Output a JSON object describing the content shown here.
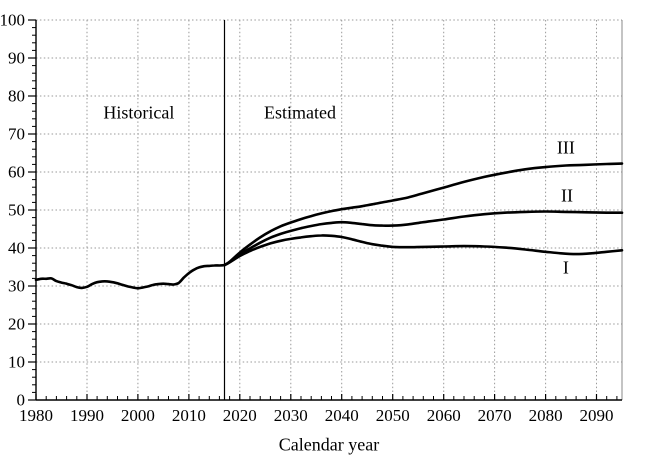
{
  "chart_data": {
    "type": "line",
    "title": "",
    "xlabel": "Calendar year",
    "ylabel": "",
    "xlim": [
      1980,
      2095
    ],
    "ylim": [
      0,
      100
    ],
    "x_ticks": [
      1980,
      1990,
      2000,
      2010,
      2020,
      2030,
      2040,
      2050,
      2060,
      2070,
      2080,
      2090
    ],
    "y_ticks": [
      0,
      10,
      20,
      30,
      40,
      50,
      60,
      70,
      80,
      90,
      100
    ],
    "x_minor_step": 2,
    "y_minor_step": 2,
    "grid": "dotted",
    "grid_color": "#9a9a9a",
    "axis_color": "#000000",
    "line_color": "#000000",
    "border_right_color": "#888888",
    "divider_year": 2017,
    "annotations": [
      {
        "text": "Historical",
        "year": 2000.2,
        "value": 75.5
      },
      {
        "text": "Estimated",
        "year": 2031.8,
        "value": 75.5
      },
      {
        "text": "III",
        "year": 2084.0,
        "value": 66.3
      },
      {
        "text": "II",
        "year": 2084.2,
        "value": 53.8
      },
      {
        "text": "I",
        "year": 2084.0,
        "value": 34.8
      }
    ],
    "series": [
      {
        "name": "Historical",
        "points": [
          [
            1980,
            31.6
          ],
          [
            1981,
            31.9
          ],
          [
            1982,
            31.9
          ],
          [
            1983,
            32.0
          ],
          [
            1984,
            31.3
          ],
          [
            1985,
            30.9
          ],
          [
            1986,
            30.6
          ],
          [
            1987,
            30.2
          ],
          [
            1988,
            29.7
          ],
          [
            1989,
            29.5
          ],
          [
            1990,
            29.8
          ],
          [
            1991,
            30.5
          ],
          [
            1992,
            31.0
          ],
          [
            1993,
            31.2
          ],
          [
            1994,
            31.2
          ],
          [
            1995,
            31.0
          ],
          [
            1996,
            30.7
          ],
          [
            1997,
            30.3
          ],
          [
            1998,
            29.9
          ],
          [
            1999,
            29.6
          ],
          [
            2000,
            29.4
          ],
          [
            2001,
            29.6
          ],
          [
            2002,
            29.9
          ],
          [
            2003,
            30.3
          ],
          [
            2004,
            30.5
          ],
          [
            2005,
            30.6
          ],
          [
            2006,
            30.5
          ],
          [
            2007,
            30.4
          ],
          [
            2008,
            30.8
          ],
          [
            2009,
            32.2
          ],
          [
            2010,
            33.4
          ],
          [
            2011,
            34.3
          ],
          [
            2012,
            34.9
          ],
          [
            2013,
            35.2
          ],
          [
            2014,
            35.3
          ],
          [
            2015,
            35.4
          ],
          [
            2016,
            35.4
          ],
          [
            2017,
            35.5
          ]
        ]
      },
      {
        "name": "I",
        "points": [
          [
            2017,
            35.5
          ],
          [
            2018,
            36.2
          ],
          [
            2020,
            37.9
          ],
          [
            2022,
            39.2
          ],
          [
            2024,
            40.3
          ],
          [
            2026,
            41.2
          ],
          [
            2028,
            41.9
          ],
          [
            2030,
            42.4
          ],
          [
            2032,
            42.8
          ],
          [
            2034,
            43.1
          ],
          [
            2036,
            43.3
          ],
          [
            2038,
            43.2
          ],
          [
            2040,
            42.9
          ],
          [
            2042,
            42.3
          ],
          [
            2044,
            41.6
          ],
          [
            2046,
            41.0
          ],
          [
            2048,
            40.6
          ],
          [
            2050,
            40.3
          ],
          [
            2053,
            40.2
          ],
          [
            2056,
            40.3
          ],
          [
            2060,
            40.4
          ],
          [
            2064,
            40.5
          ],
          [
            2068,
            40.4
          ],
          [
            2072,
            40.1
          ],
          [
            2076,
            39.6
          ],
          [
            2080,
            39.0
          ],
          [
            2083,
            38.6
          ],
          [
            2086,
            38.4
          ],
          [
            2089,
            38.6
          ],
          [
            2092,
            39.0
          ],
          [
            2095,
            39.4
          ]
        ]
      },
      {
        "name": "II",
        "points": [
          [
            2017,
            35.5
          ],
          [
            2018,
            36.3
          ],
          [
            2020,
            38.3
          ],
          [
            2022,
            39.9
          ],
          [
            2024,
            41.4
          ],
          [
            2026,
            42.7
          ],
          [
            2028,
            43.7
          ],
          [
            2030,
            44.5
          ],
          [
            2032,
            45.2
          ],
          [
            2034,
            45.8
          ],
          [
            2036,
            46.3
          ],
          [
            2038,
            46.6
          ],
          [
            2040,
            46.8
          ],
          [
            2042,
            46.6
          ],
          [
            2044,
            46.3
          ],
          [
            2046,
            46.0
          ],
          [
            2048,
            45.9
          ],
          [
            2050,
            45.9
          ],
          [
            2053,
            46.2
          ],
          [
            2056,
            46.8
          ],
          [
            2060,
            47.5
          ],
          [
            2064,
            48.3
          ],
          [
            2068,
            48.9
          ],
          [
            2072,
            49.3
          ],
          [
            2076,
            49.5
          ],
          [
            2080,
            49.6
          ],
          [
            2084,
            49.5
          ],
          [
            2088,
            49.4
          ],
          [
            2092,
            49.3
          ],
          [
            2095,
            49.3
          ]
        ]
      },
      {
        "name": "III",
        "points": [
          [
            2017,
            35.5
          ],
          [
            2018,
            36.4
          ],
          [
            2020,
            38.8
          ],
          [
            2022,
            40.9
          ],
          [
            2024,
            42.8
          ],
          [
            2026,
            44.4
          ],
          [
            2028,
            45.7
          ],
          [
            2030,
            46.7
          ],
          [
            2032,
            47.6
          ],
          [
            2034,
            48.4
          ],
          [
            2036,
            49.1
          ],
          [
            2038,
            49.7
          ],
          [
            2040,
            50.2
          ],
          [
            2042,
            50.6
          ],
          [
            2044,
            51.0
          ],
          [
            2046,
            51.5
          ],
          [
            2048,
            52.0
          ],
          [
            2050,
            52.5
          ],
          [
            2053,
            53.3
          ],
          [
            2056,
            54.4
          ],
          [
            2060,
            55.9
          ],
          [
            2064,
            57.4
          ],
          [
            2068,
            58.7
          ],
          [
            2072,
            59.8
          ],
          [
            2076,
            60.7
          ],
          [
            2080,
            61.3
          ],
          [
            2084,
            61.7
          ],
          [
            2088,
            61.9
          ],
          [
            2092,
            62.1
          ],
          [
            2095,
            62.2
          ]
        ]
      }
    ]
  }
}
